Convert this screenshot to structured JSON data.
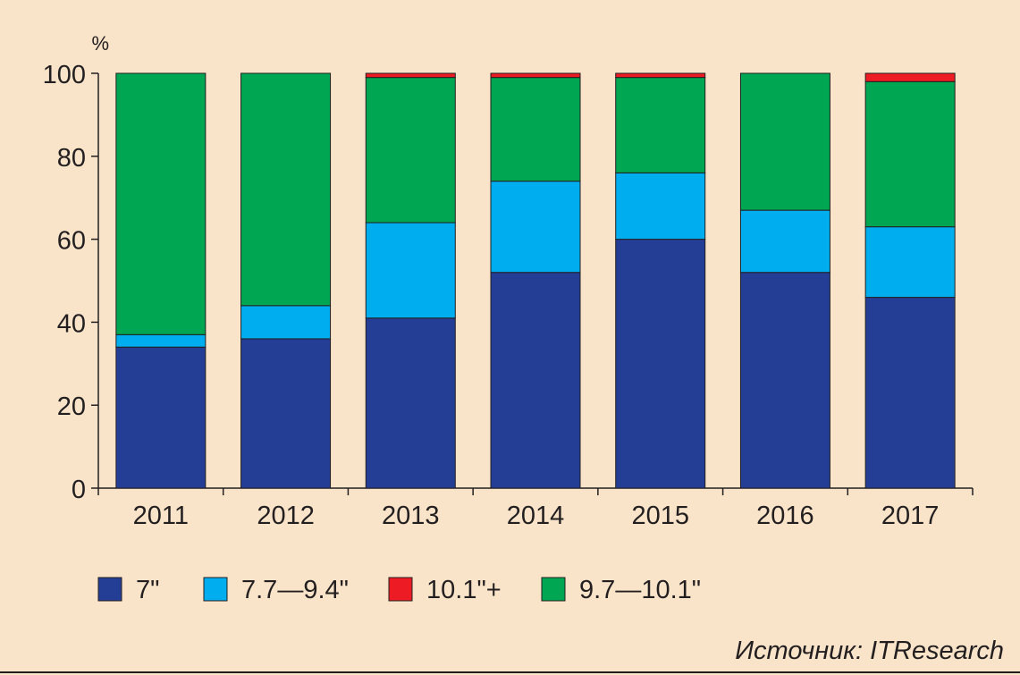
{
  "chart_data": {
    "type": "bar",
    "stacked": true,
    "categories": [
      "2011",
      "2012",
      "2013",
      "2014",
      "2015",
      "2016",
      "2017"
    ],
    "series": [
      {
        "name": "7\"",
        "color": "#233e94",
        "values": [
          34,
          36,
          41,
          52,
          60,
          52,
          46
        ]
      },
      {
        "name": "7.7—9.4\"",
        "color": "#00aeef",
        "values": [
          3,
          8,
          23,
          22,
          16,
          15,
          17
        ]
      },
      {
        "name": "9.7—10.1\"",
        "color": "#00a651",
        "values": [
          63,
          56,
          35,
          25,
          23,
          33,
          35
        ]
      },
      {
        "name": "10.1\"+",
        "color": "#ed1c24",
        "values": [
          0,
          0,
          1,
          1,
          1,
          0,
          2
        ]
      }
    ],
    "legend_order": [
      "7\"",
      "7.7—9.4\"",
      "10.1\"+",
      "9.7—10.1\""
    ],
    "y_unit": "%",
    "ylim": [
      0,
      100
    ],
    "yticks": [
      0,
      20,
      40,
      60,
      80,
      100
    ],
    "grid": false,
    "legend_position": "bottom"
  },
  "source": "Источник: ITResearch"
}
